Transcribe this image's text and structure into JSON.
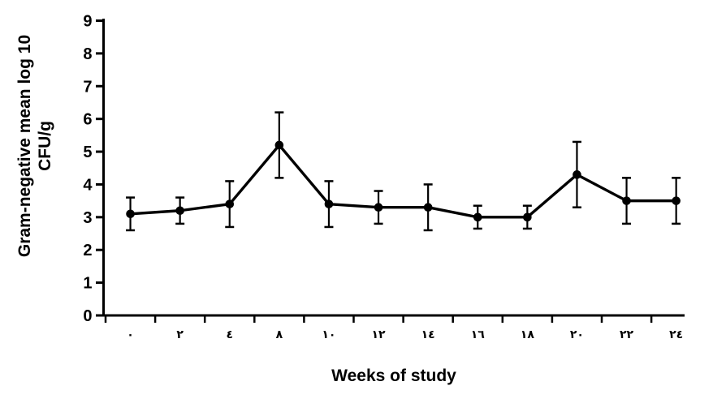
{
  "chart_data": {
    "type": "line",
    "xlabel": "Weeks of study",
    "ylabel": "Gram-negative mean log 10 CFU/g",
    "ylabel_lines": [
      "Gram-negative mean log 10",
      "CFU/g"
    ],
    "categories_weeks": [
      0,
      2,
      4,
      8,
      10,
      12,
      14,
      16,
      18,
      20,
      22,
      24
    ],
    "x_tick_labels": [
      "٠",
      "٢",
      "٤",
      "٨",
      "١٠",
      "١٢",
      "١٤",
      "١٦",
      "١٨",
      "٢٠",
      "٢٢",
      "٢٤"
    ],
    "series": [
      {
        "name": "Gram-negative mean log 10 CFU/g",
        "values": [
          3.1,
          3.2,
          3.4,
          5.2,
          3.4,
          3.3,
          3.3,
          3.0,
          3.0,
          4.3,
          3.5,
          3.5
        ],
        "error_bars": [
          0.5,
          0.4,
          0.7,
          1.0,
          0.7,
          0.5,
          0.7,
          0.35,
          0.35,
          1.0,
          0.7,
          0.7
        ]
      }
    ],
    "ylim": [
      0,
      9
    ],
    "y_ticks": [
      0,
      1,
      2,
      3,
      4,
      5,
      6,
      7,
      8,
      9
    ],
    "y_tick_labels": [
      "0",
      "1",
      "2",
      "3",
      "4",
      "5",
      "6",
      "7",
      "8",
      "9"
    ],
    "grid": false,
    "legend": false,
    "marker": "circle",
    "colors": {
      "line": "#000000",
      "marker": "#000000",
      "error_bar": "#000000",
      "axis": "#000000",
      "text": "#000000",
      "background": "#ffffff"
    }
  }
}
